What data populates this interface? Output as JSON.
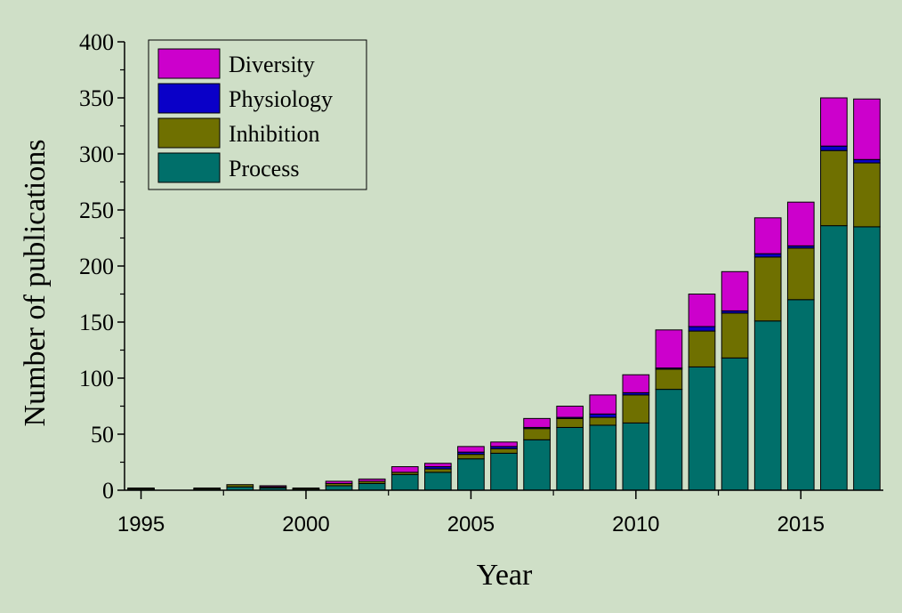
{
  "chart_data": {
    "type": "bar",
    "stacked": true,
    "title": "",
    "xlabel": "Year",
    "ylabel": "Number of publications",
    "xlim": [
      1994.5,
      2017.5
    ],
    "ylim": [
      0,
      400
    ],
    "yticks": [
      0,
      50,
      100,
      150,
      200,
      250,
      300,
      350,
      400
    ],
    "xticks": [
      1995,
      2000,
      2005,
      2010,
      2015
    ],
    "legend": "top-left",
    "grid": false,
    "background_color": "#cfdfc7",
    "x": [
      1995,
      1996,
      1997,
      1998,
      1999,
      2000,
      2001,
      2002,
      2003,
      2004,
      2005,
      2006,
      2007,
      2008,
      2009,
      2010,
      2011,
      2012,
      2013,
      2014,
      2015,
      2016,
      2017
    ],
    "series": [
      {
        "name": "Process",
        "color": "#006f6a",
        "values": [
          1,
          0,
          1,
          3,
          2,
          1,
          4,
          6,
          14,
          16,
          28,
          33,
          45,
          56,
          58,
          60,
          90,
          110,
          118,
          151,
          170,
          236,
          235
        ]
      },
      {
        "name": "Inhibition",
        "color": "#6f7000",
        "values": [
          1,
          0,
          1,
          2,
          1,
          1,
          2,
          2,
          2,
          3,
          4,
          4,
          10,
          8,
          7,
          25,
          18,
          32,
          40,
          57,
          46,
          67,
          57
        ]
      },
      {
        "name": "Physiology",
        "color": "#0a00c8",
        "values": [
          0,
          0,
          0,
          0,
          0,
          0,
          0,
          0,
          0,
          2,
          2,
          2,
          1,
          1,
          3,
          2,
          1,
          4,
          2,
          3,
          2,
          4,
          3
        ]
      },
      {
        "name": "Diversity",
        "color": "#cc00cc",
        "values": [
          0,
          0,
          0,
          0,
          1,
          0,
          2,
          2,
          5,
          3,
          5,
          4,
          8,
          10,
          17,
          16,
          34,
          29,
          35,
          32,
          39,
          43,
          54
        ]
      }
    ],
    "legend_order": [
      "Diversity",
      "Physiology",
      "Inhibition",
      "Process"
    ]
  }
}
